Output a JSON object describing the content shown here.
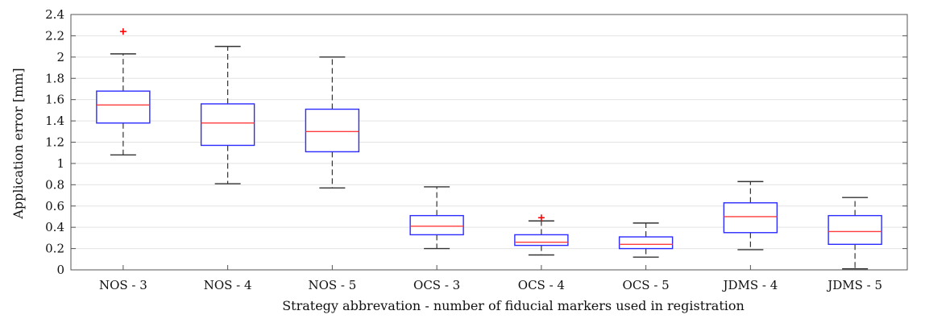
{
  "chart_data": {
    "type": "boxplot",
    "title": "",
    "xlabel": "Strategy abbrevation - number of fiducial markers used in registration",
    "ylabel": "Application error [mm]",
    "ylim": [
      0,
      2.4
    ],
    "yticks": [
      "0",
      "0.2",
      "0.4",
      "0.6",
      "0.8",
      "1",
      "1.2",
      "1.4",
      "1.6",
      "1.8",
      "2",
      "2.2",
      "2.4"
    ],
    "grid": true,
    "categories": [
      "NOS - 3",
      "NOS - 4",
      "NOS - 5",
      "OCS - 3",
      "OCS - 4",
      "OCS - 5",
      "JDMS - 4",
      "JDMS - 5"
    ],
    "boxes": [
      {
        "whisker_low": 1.08,
        "q1": 1.38,
        "median": 1.55,
        "q3": 1.68,
        "whisker_high": 2.03,
        "outliers": [
          2.24
        ]
      },
      {
        "whisker_low": 0.81,
        "q1": 1.17,
        "median": 1.38,
        "q3": 1.56,
        "whisker_high": 2.1,
        "outliers": []
      },
      {
        "whisker_low": 0.77,
        "q1": 1.11,
        "median": 1.3,
        "q3": 1.51,
        "whisker_high": 2.0,
        "outliers": []
      },
      {
        "whisker_low": 0.2,
        "q1": 0.33,
        "median": 0.41,
        "q3": 0.51,
        "whisker_high": 0.78,
        "outliers": []
      },
      {
        "whisker_low": 0.14,
        "q1": 0.23,
        "median": 0.26,
        "q3": 0.33,
        "whisker_high": 0.46,
        "outliers": [
          0.49
        ]
      },
      {
        "whisker_low": 0.12,
        "q1": 0.2,
        "median": 0.24,
        "q3": 0.31,
        "whisker_high": 0.44,
        "outliers": []
      },
      {
        "whisker_low": 0.19,
        "q1": 0.35,
        "median": 0.5,
        "q3": 0.63,
        "whisker_high": 0.83,
        "outliers": []
      },
      {
        "whisker_low": 0.01,
        "q1": 0.24,
        "median": 0.36,
        "q3": 0.51,
        "whisker_high": 0.68,
        "outliers": []
      }
    ],
    "colors": {
      "box": "#2b2bff",
      "median": "#ff3b3b",
      "whisker": "#333333",
      "outlier": "#ff0000",
      "grid": "#e3e3e3",
      "axis": "#555555"
    }
  }
}
